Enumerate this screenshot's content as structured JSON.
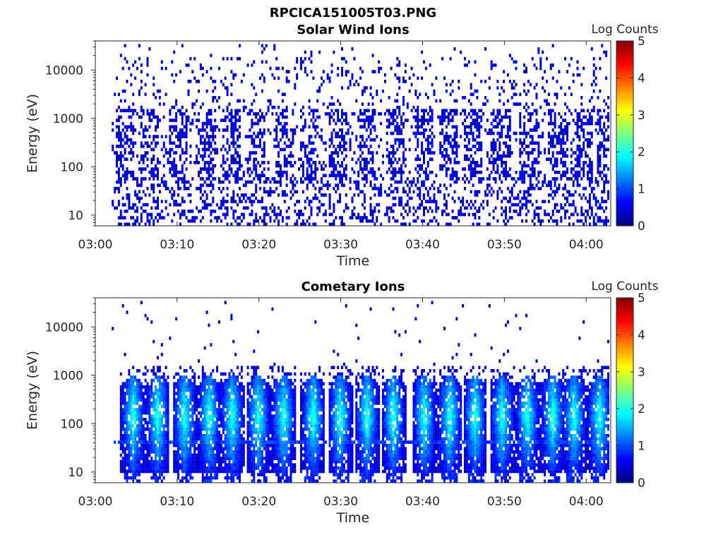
{
  "figure": {
    "title": "RPCICA151005T03.PNG"
  },
  "colormap": [
    "#00007f",
    "#0000ff",
    "#007fff",
    "#00ffff",
    "#7fff7f",
    "#ffff00",
    "#ff7f00",
    "#ff0000",
    "#7f0000"
  ],
  "chart_data": [
    {
      "type": "heatmap",
      "title": "Solar Wind Ions",
      "xlabel": "Time",
      "ylabel": "Energy (eV)",
      "x_ticks": [
        "03:00",
        "03:10",
        "03:20",
        "03:30",
        "03:40",
        "03:50",
        "04:00"
      ],
      "y_ticks": [
        "10",
        "100",
        "1000",
        "10000"
      ],
      "y_scale": "log",
      "xlim": [
        "03:00",
        "04:03"
      ],
      "ylim": [
        6,
        40000
      ],
      "data_x_range": [
        "03:02",
        "04:03"
      ],
      "colorbar": {
        "label": "Log Counts",
        "ticks": [
          "0",
          "1",
          "2",
          "3",
          "4",
          "5"
        ],
        "range": [
          0,
          5
        ]
      },
      "pattern": "sparse background counts across 10 eV – 30 keV, mostly ≤ 1 log count, with periodic enhancements at 50–1000 eV",
      "burst_times_min": [
        3.5,
        6.5,
        10,
        13.5,
        16.5,
        19.5,
        23,
        26,
        29.5,
        33,
        36.5,
        40,
        43,
        46,
        49.5,
        53,
        56.5,
        59.5,
        62.5
      ],
      "typical_log_counts": [
        0,
        1
      ]
    },
    {
      "type": "heatmap",
      "title": "Cometary Ions",
      "xlabel": "Time",
      "ylabel": "Energy (eV)",
      "x_ticks": [
        "03:00",
        "03:10",
        "03:20",
        "03:30",
        "03:40",
        "03:50",
        "04:00"
      ],
      "y_ticks": [
        "10",
        "100",
        "1000",
        "10000"
      ],
      "y_scale": "log",
      "xlim": [
        "03:00",
        "04:03"
      ],
      "ylim": [
        6,
        40000
      ],
      "data_x_range": [
        "03:02",
        "04:03"
      ],
      "colorbar": {
        "label": "Log Counts",
        "ticks": [
          "0",
          "1",
          "2",
          "3",
          "4",
          "5"
        ],
        "range": [
          0,
          5
        ]
      },
      "pattern": "periodic vertical bursts from ~6 eV to ~1 keV, peaking near 100–300 eV at about 2 log counts, with a persistent band near 40 eV",
      "burst_times_min": [
        4.5,
        7.5,
        10.8,
        13.8,
        16.6,
        19.8,
        22.9,
        26.5,
        29.8,
        33.1,
        36.3,
        40.1,
        43.2,
        46.3,
        49.6,
        52.7,
        55.8,
        58.4,
        61.5
      ],
      "band_energy_eV": 40,
      "peak_log_counts": 2
    }
  ]
}
